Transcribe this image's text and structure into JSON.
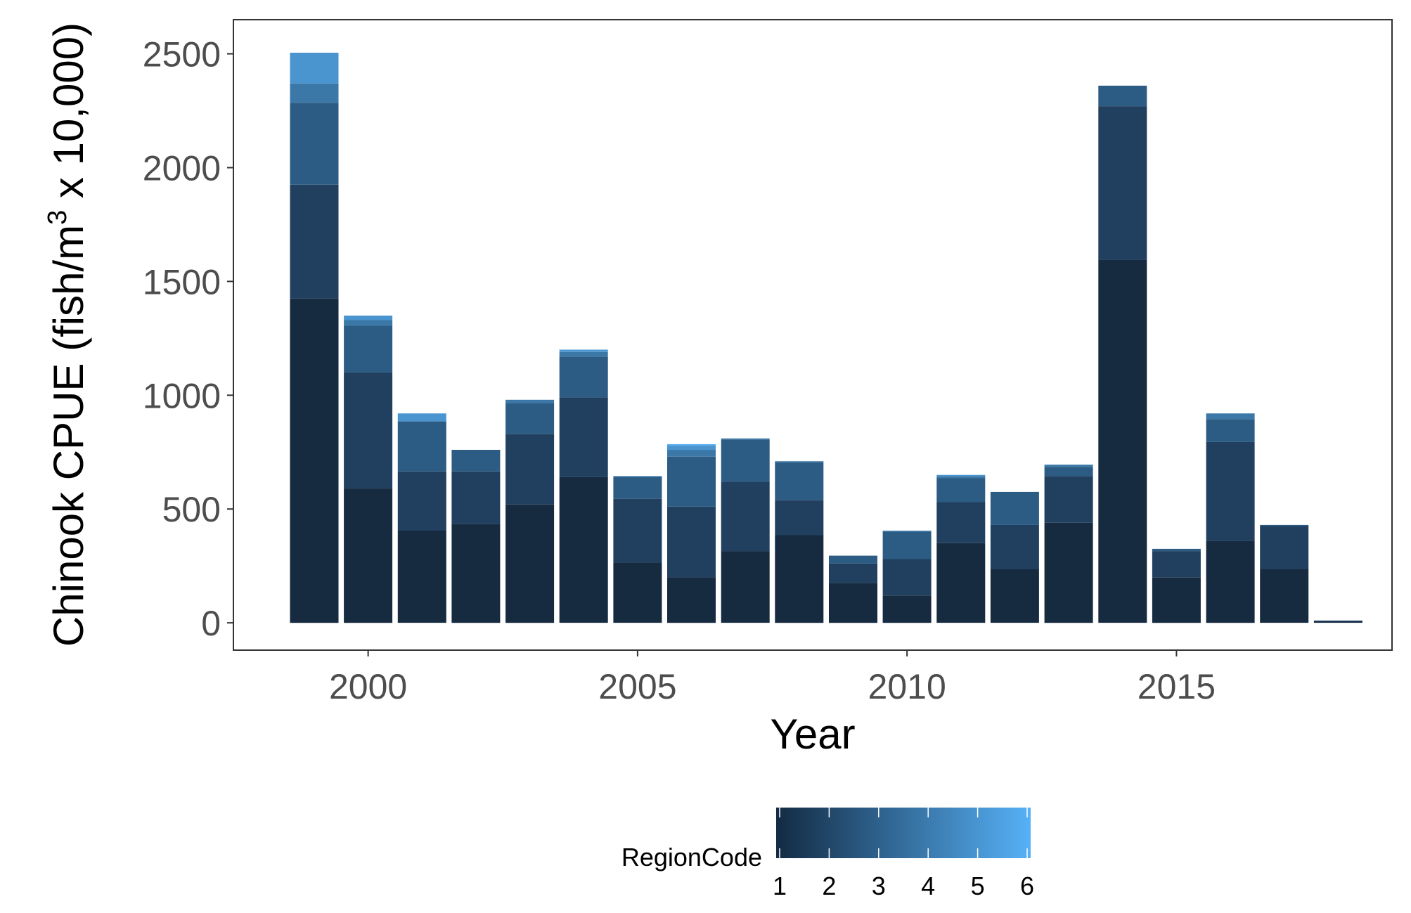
{
  "chart_data": {
    "type": "bar",
    "stacked": true,
    "title": "",
    "xlabel": "Year",
    "ylabel_main": "Chinook CPUE (fish/m",
    "ylabel_sup": "3",
    "ylabel_end": " x 10,000)",
    "xlim": [
      1997.5,
      2019
    ],
    "ylim": [
      -120,
      2650
    ],
    "x_ticks": [
      2000,
      2005,
      2010,
      2015
    ],
    "y_ticks": [
      0,
      500,
      1000,
      1500,
      2000,
      2500
    ],
    "grid": false,
    "legend": {
      "title": "RegionCode",
      "position": "bottom",
      "type": "colorbar",
      "labels": [
        "1",
        "2",
        "3",
        "4",
        "5",
        "6"
      ],
      "color_low": "#132B43",
      "color_high": "#56B1F7"
    },
    "region_colors": [
      "#162a40",
      "#21405f",
      "#2c5b83",
      "#3b78a8",
      "#4a95d0",
      "#56b1f7"
    ],
    "bars": [
      {
        "year": 1999,
        "segments": [
          1425,
          500,
          360,
          85,
          135,
          0
        ]
      },
      {
        "year": 2000,
        "segments": [
          590,
          510,
          205,
          25,
          20,
          0
        ]
      },
      {
        "year": 2001,
        "segments": [
          405,
          260,
          220,
          0,
          35,
          0
        ]
      },
      {
        "year": 2002,
        "segments": [
          435,
          230,
          95,
          0,
          0,
          0
        ]
      },
      {
        "year": 2003,
        "segments": [
          520,
          310,
          135,
          15,
          0,
          0
        ]
      },
      {
        "year": 2004,
        "segments": [
          640,
          350,
          180,
          20,
          10,
          0
        ]
      },
      {
        "year": 2005,
        "segments": [
          265,
          280,
          95,
          5,
          0,
          0
        ]
      },
      {
        "year": 2006,
        "segments": [
          200,
          310,
          220,
          30,
          20,
          5
        ]
      },
      {
        "year": 2007,
        "segments": [
          315,
          305,
          185,
          5,
          0,
          0
        ]
      },
      {
        "year": 2008,
        "segments": [
          385,
          155,
          165,
          5,
          0,
          0
        ]
      },
      {
        "year": 2009,
        "segments": [
          175,
          85,
          35,
          0,
          0,
          0
        ]
      },
      {
        "year": 2010,
        "segments": [
          120,
          160,
          120,
          5,
          0,
          0
        ]
      },
      {
        "year": 2011,
        "segments": [
          350,
          180,
          105,
          10,
          5,
          0
        ]
      },
      {
        "year": 2012,
        "segments": [
          235,
          195,
          145,
          0,
          0,
          0
        ]
      },
      {
        "year": 2013,
        "segments": [
          440,
          205,
          40,
          10,
          0,
          0
        ]
      },
      {
        "year": 2014,
        "segments": [
          1595,
          675,
          90,
          0,
          0,
          0
        ]
      },
      {
        "year": 2015,
        "segments": [
          200,
          115,
          10,
          0,
          0,
          0
        ]
      },
      {
        "year": 2016,
        "segments": [
          360,
          435,
          100,
          25,
          0,
          0
        ]
      },
      {
        "year": 2017,
        "segments": [
          235,
          190,
          5,
          0,
          0,
          0
        ]
      },
      {
        "year": 2018,
        "segments": [
          5,
          5,
          0,
          0,
          0,
          0
        ]
      }
    ]
  }
}
